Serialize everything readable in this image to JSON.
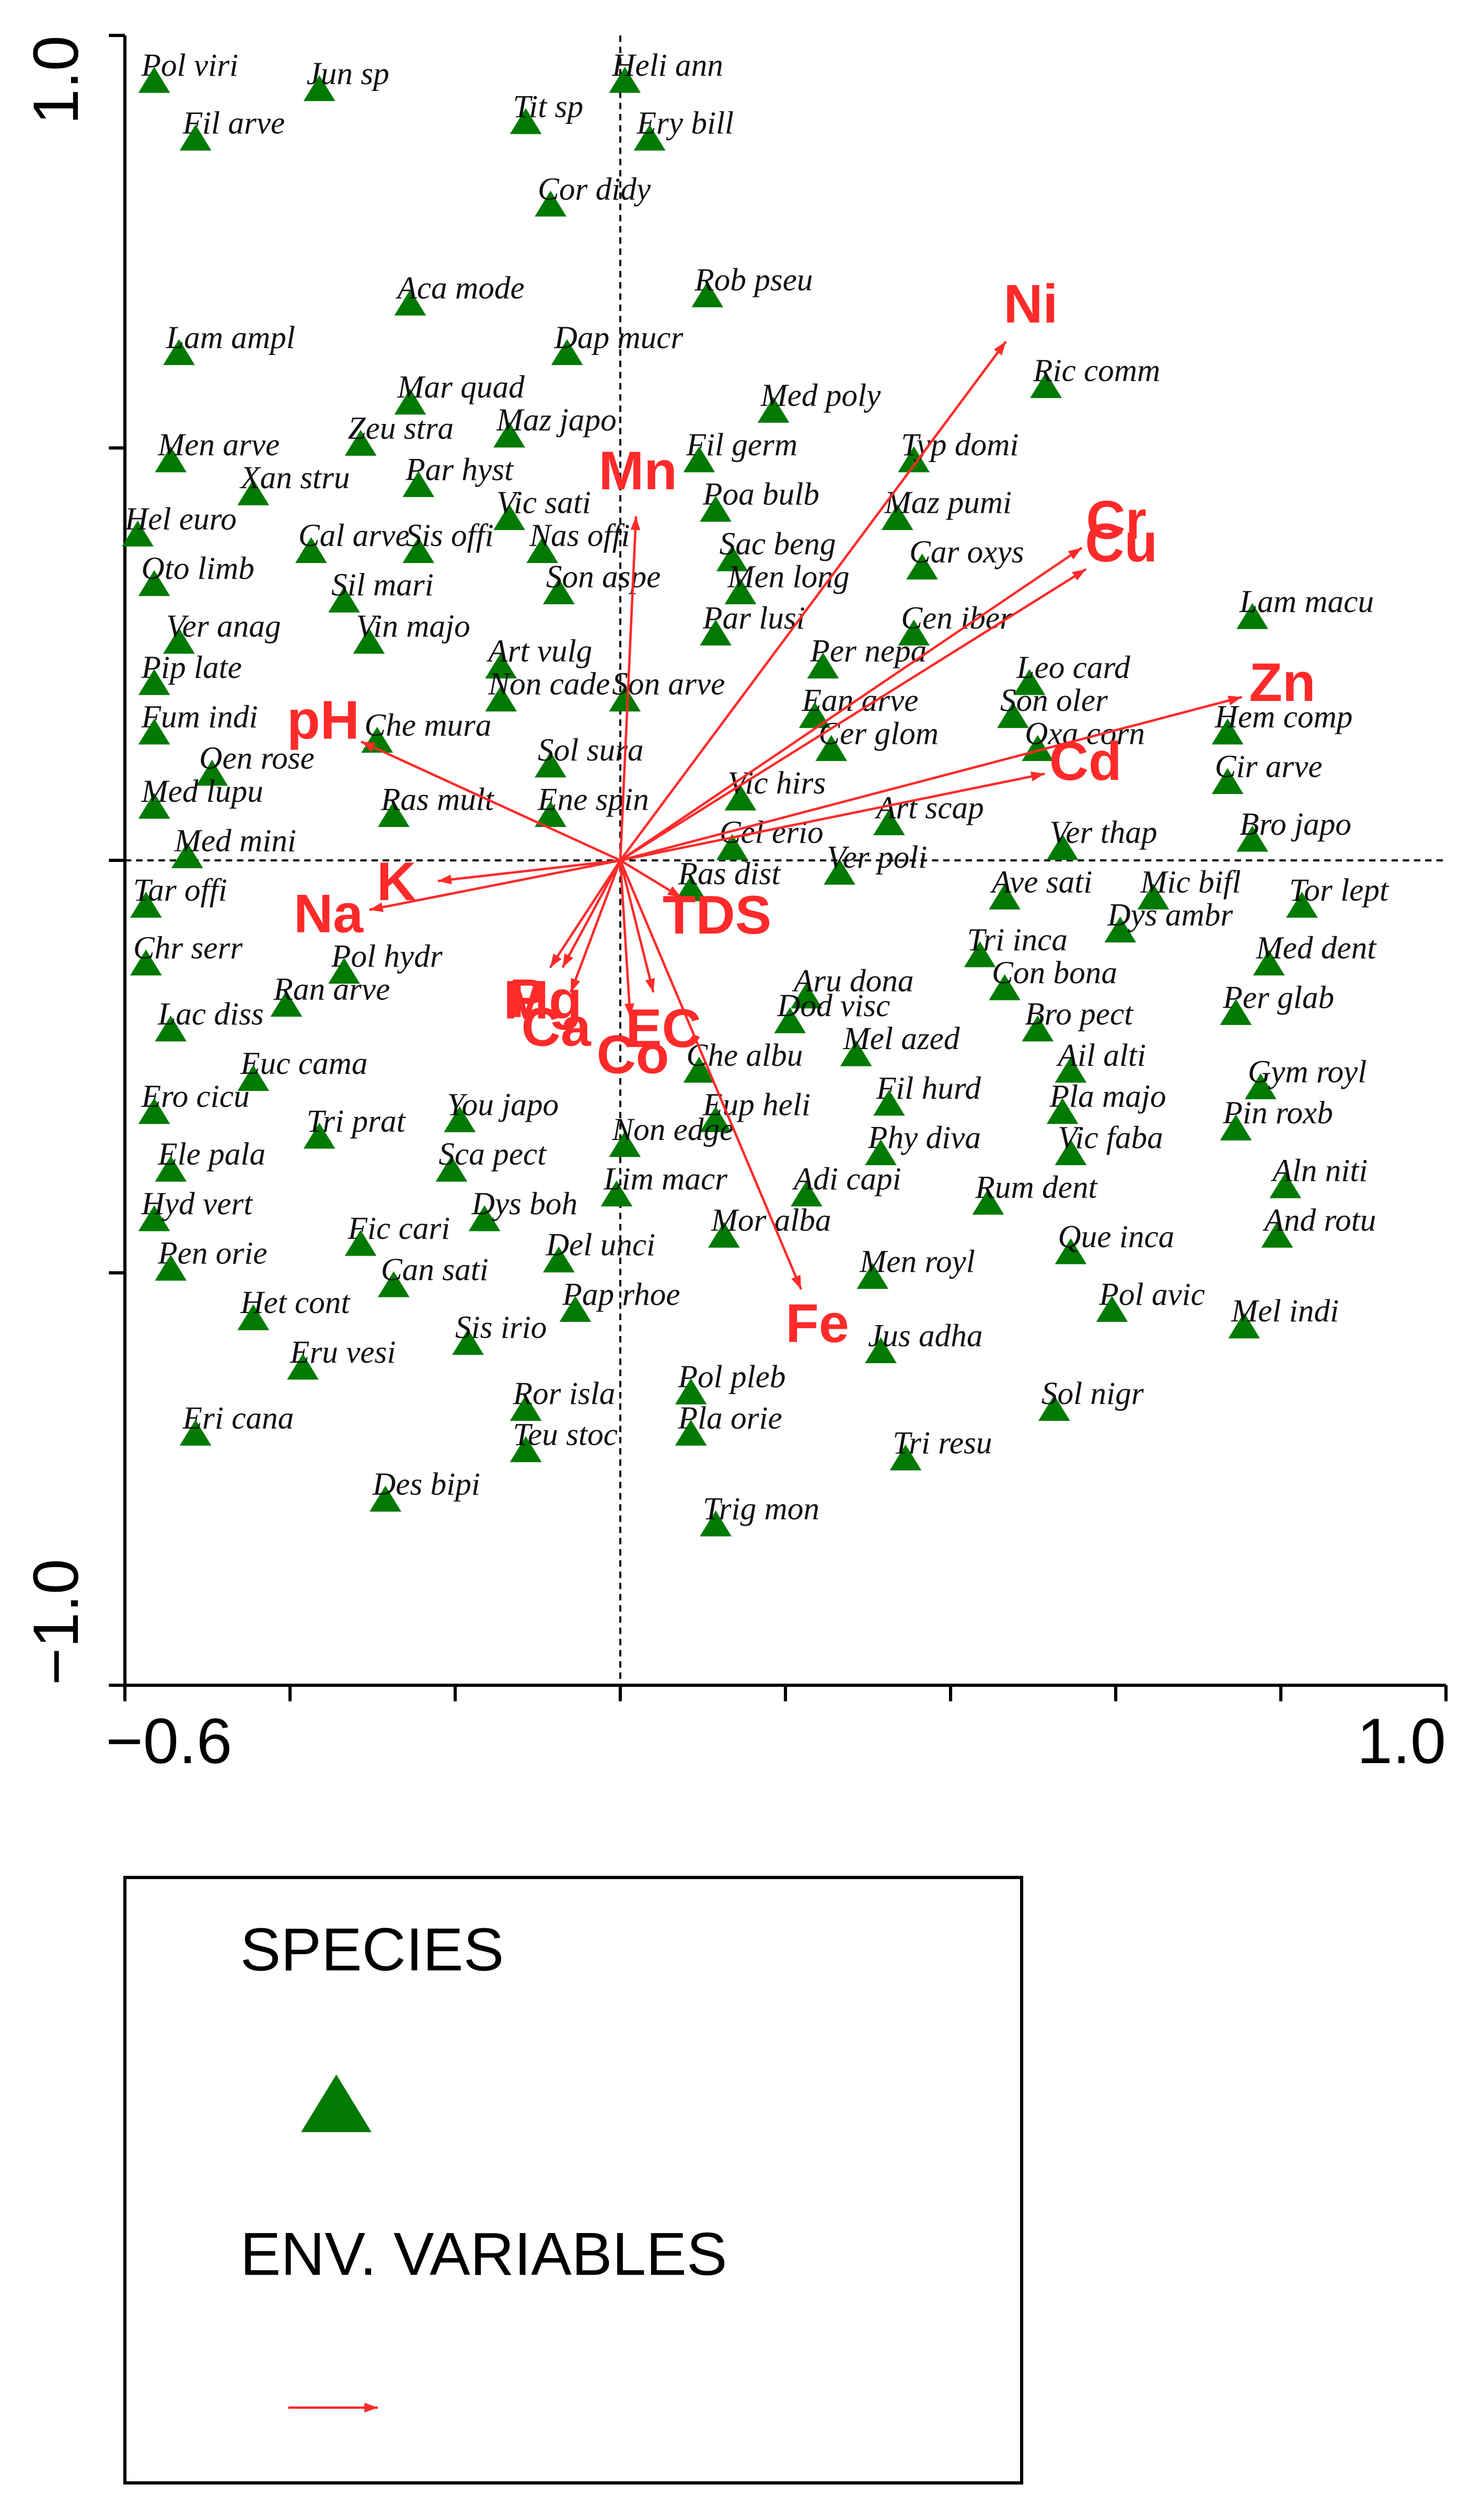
{
  "chart_data": {
    "type": "biplot",
    "xlim": [
      -0.6,
      1.0
    ],
    "ylim": [
      -1.0,
      1.0
    ],
    "xticks": [
      {
        "value": -0.6,
        "label": "−0.6"
      },
      {
        "value": -0.4,
        "label": null
      },
      {
        "value": -0.2,
        "label": null
      },
      {
        "value": 0,
        "label": null
      },
      {
        "value": 0.2,
        "label": null
      },
      {
        "value": 0.4,
        "label": null
      },
      {
        "value": 0.6,
        "label": null
      },
      {
        "value": 0.8,
        "label": null
      },
      {
        "value": 1.0,
        "label": "1.0"
      }
    ],
    "yticks": [
      {
        "value": -1.0,
        "label": "−1.0"
      },
      {
        "value": -0.5,
        "label": null
      },
      {
        "value": 0,
        "label": null
      },
      {
        "value": 0.5,
        "label": null
      },
      {
        "value": 1.0,
        "label": "1.0"
      }
    ],
    "zero_lines": true,
    "series": [
      {
        "name": "SPECIES",
        "color": "#007a00",
        "marker": "triangle",
        "labels": [
          "Pol viri",
          "Jun sp",
          "Fil arve",
          "Tit sp",
          "Heli ann",
          "Ery bill",
          "Cor didy",
          "Rob pseu",
          "Aca mode",
          "Lam ampl",
          "Dap mucr",
          "Ric comm",
          "Mar quad",
          "Med poly",
          "Men arve",
          "Zeu stra",
          "Maz japo",
          "Typ domi",
          "Fil germ",
          "Xan stru",
          "Par hyst",
          "Poa bulb",
          "Maz pumi",
          "Hel euro",
          "Cal arve",
          "Sis offi",
          "Vic sati",
          "Nas offi",
          "Sac beng",
          "Car oxys",
          "Oto limb",
          "Sil mari",
          "Son aspe",
          "Men long",
          "Lam macu",
          "Ver anag",
          "Vin majo",
          "Par lusi",
          "Cen iber",
          "Pip late",
          "Art vulg",
          "Per nepa",
          "Leo card",
          "Non cade",
          "Son arve",
          "Ean arve",
          "Son oler",
          "Fum indi",
          "Hem comp",
          "Che mura",
          "Cer glom",
          "Oxa corn",
          "Oen rose",
          "Sol sura",
          "Cir arve",
          "Med lupu",
          "Ras mult",
          "Ene spin",
          "Vic hirs",
          "Art scap",
          "Cel erio",
          "Bro japo",
          "Med mini",
          "Ver thap",
          "Ras dist",
          "Ver poli",
          "Ave sati",
          "Mic bifl",
          "Tor lept",
          "Tar offi",
          "Dys ambr",
          "Tri inca",
          "Med dent",
          "Chr serr",
          "Pol hydr",
          "Con bona",
          "Aru dona",
          "Per glab",
          "Ran arve",
          "Dod visc",
          "Bro pect",
          "Lac diss",
          "Mel azed",
          "Euc cama",
          "Ail alti",
          "Che albu",
          "Gym royl",
          "Ero cicu",
          "Fil hurd",
          "Pla majo",
          "Tri prat",
          "You japo",
          "Eup heli",
          "Pin roxb",
          "Non edge",
          "Phy diva",
          "Vic faba",
          "Ele pala",
          "Sca pect",
          "Aln niti",
          "Lim macr",
          "Adi capi",
          "Rum dent",
          "Hyd vert",
          "Dys boh",
          "And rotu",
          "Fic cari",
          "Del unci",
          "Mor alba",
          "Que inca",
          "Pen orie",
          "Can sati",
          "Men royl",
          "Het cont",
          "Pap rhoe",
          "Pol avic",
          "Mel indi",
          "Sis irio",
          "Jus adha",
          "Eru vesi",
          "Pol pleb",
          "Ror isla",
          "Sol nigr",
          "Eri cana",
          "Pla orie",
          "Teu stoc",
          "Tri resu",
          "Des bipi",
          "Trig mon"
        ],
        "x": [
          -0.58,
          -0.38,
          -0.53,
          -0.13,
          -0.01,
          0.02,
          -0.1,
          0.09,
          -0.27,
          -0.55,
          -0.08,
          0.5,
          -0.27,
          0.17,
          -0.56,
          -0.33,
          -0.15,
          0.34,
          0.08,
          -0.46,
          -0.26,
          0.1,
          0.32,
          -0.6,
          -0.39,
          -0.26,
          -0.15,
          -0.11,
          0.12,
          0.35,
          -0.58,
          -0.35,
          -0.09,
          0.13,
          0.75,
          -0.55,
          -0.32,
          0.1,
          0.34,
          -0.58,
          -0.16,
          0.23,
          0.48,
          -0.16,
          -0.01,
          0.22,
          0.46,
          -0.58,
          0.72,
          -0.31,
          0.24,
          0.49,
          -0.51,
          -0.1,
          0.72,
          -0.58,
          -0.29,
          -0.1,
          0.13,
          0.31,
          0.12,
          0.75,
          -0.54,
          0.52,
          0.07,
          0.25,
          0.45,
          0.63,
          0.81,
          -0.59,
          0.59,
          0.42,
          0.77,
          -0.59,
          -0.35,
          0.45,
          0.21,
          0.73,
          -0.42,
          0.19,
          0.49,
          -0.56,
          0.27,
          -0.46,
          0.53,
          0.08,
          0.76,
          -0.58,
          0.31,
          0.52,
          -0.38,
          -0.21,
          0.1,
          0.73,
          -0.01,
          0.3,
          0.53,
          -0.56,
          -0.22,
          0.79,
          -0.02,
          0.21,
          0.43,
          -0.58,
          -0.18,
          0.78,
          -0.33,
          -0.09,
          0.11,
          0.53,
          -0.56,
          -0.29,
          0.29,
          -0.46,
          -0.07,
          0.58,
          0.74,
          -0.2,
          0.3,
          -0.4,
          0.07,
          -0.13,
          0.51,
          -0.53,
          0.07,
          -0.13,
          0.33,
          -0.3,
          0.1
        ],
        "y": [
          0.96,
          0.95,
          0.89,
          0.91,
          0.96,
          0.89,
          0.81,
          0.7,
          0.69,
          0.63,
          0.63,
          0.59,
          0.57,
          0.56,
          0.5,
          0.52,
          0.53,
          0.5,
          0.5,
          0.46,
          0.47,
          0.44,
          0.43,
          0.41,
          0.39,
          0.39,
          0.43,
          0.39,
          0.38,
          0.37,
          0.35,
          0.33,
          0.34,
          0.34,
          0.31,
          0.28,
          0.28,
          0.29,
          0.29,
          0.23,
          0.25,
          0.25,
          0.23,
          0.21,
          0.21,
          0.19,
          0.19,
          0.17,
          0.17,
          0.16,
          0.15,
          0.15,
          0.12,
          0.13,
          0.11,
          0.08,
          0.07,
          0.07,
          0.09,
          0.06,
          0.03,
          0.04,
          0.02,
          0.03,
          -0.02,
          0.0,
          -0.03,
          -0.03,
          -0.04,
          -0.04,
          -0.07,
          -0.1,
          -0.11,
          -0.11,
          -0.12,
          -0.14,
          -0.15,
          -0.17,
          -0.16,
          -0.18,
          -0.19,
          -0.19,
          -0.22,
          -0.25,
          -0.24,
          -0.24,
          -0.26,
          -0.29,
          -0.28,
          -0.29,
          -0.32,
          -0.3,
          -0.3,
          -0.31,
          -0.33,
          -0.34,
          -0.34,
          -0.36,
          -0.36,
          -0.38,
          -0.39,
          -0.39,
          -0.4,
          -0.42,
          -0.42,
          -0.44,
          -0.45,
          -0.47,
          -0.44,
          -0.46,
          -0.48,
          -0.5,
          -0.49,
          -0.54,
          -0.53,
          -0.53,
          -0.55,
          -0.57,
          -0.58,
          -0.6,
          -0.63,
          -0.65,
          -0.65,
          -0.68,
          -0.68,
          -0.7,
          -0.71,
          -0.76,
          -0.79
        ]
      },
      {
        "name": "ENV. VARIABLES",
        "color": "#ff2a2a",
        "marker": "arrow",
        "labels": [
          "Ni",
          "Mn",
          "Cr",
          "Cu",
          "Zn",
          "pH",
          "Cd",
          "K",
          "Na",
          "TDS",
          "Ca",
          "P",
          "EC",
          "Co",
          "Mg",
          "Fe"
        ],
        "x": [
          0.467,
          0.019,
          0.559,
          0.564,
          0.753,
          -0.314,
          0.514,
          -0.221,
          -0.304,
          0.074,
          -0.06,
          -0.085,
          0.04,
          0.012,
          -0.07,
          0.219
        ],
        "y": [
          0.629,
          0.417,
          0.379,
          0.353,
          0.198,
          0.144,
          0.105,
          -0.025,
          -0.06,
          -0.045,
          -0.16,
          -0.13,
          -0.16,
          -0.19,
          -0.13,
          -0.52
        ]
      }
    ]
  }
}
